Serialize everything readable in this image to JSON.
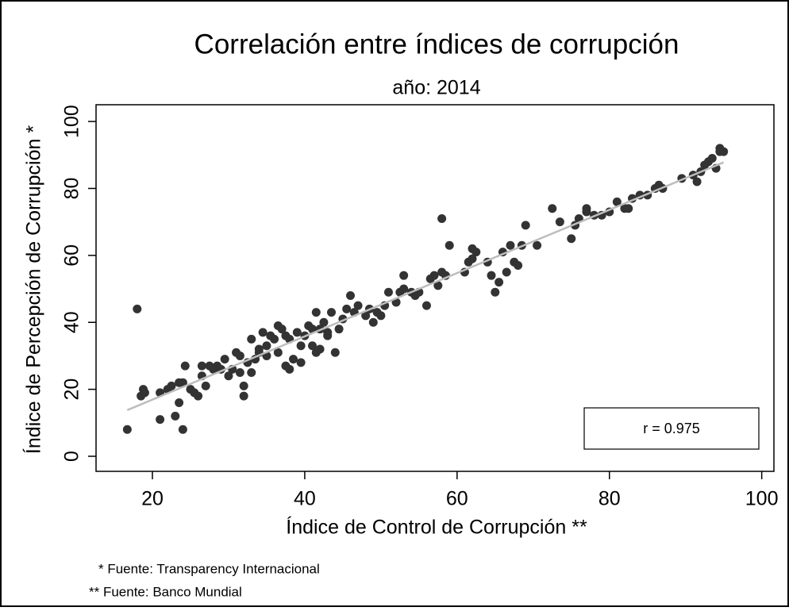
{
  "chart_data": {
    "type": "scatter",
    "title": "Correlación entre índices de corrupción",
    "subtitle": "año: 2014",
    "x_label": "Índice de Control de Corrupción **",
    "y_label": "Índice de Percepción de Corrupción *",
    "annotation": "r = 0.975",
    "footnotes": [
      "* Fuente: Transparency Internacional",
      "** Fuente: Banco Mundial"
    ],
    "color": "#333333",
    "x": [
      16.7,
      18,
      18.5,
      18.8,
      19,
      21,
      21,
      22,
      22.5,
      23,
      23.5,
      23.5,
      24,
      24,
      24.3,
      25,
      25.5,
      26,
      26.5,
      26.5,
      27,
      27.5,
      28,
      28.5,
      29,
      29.5,
      30,
      30.5,
      31,
      31.5,
      31.5,
      32,
      32,
      32.5,
      33,
      33,
      33.5,
      34,
      34,
      34.5,
      35,
      35,
      35.5,
      36,
      36.5,
      36.5,
      37,
      37.5,
      37.5,
      38,
      38,
      38.5,
      39,
      39.5,
      39.5,
      40,
      40.5,
      41,
      41,
      41.5,
      41.5,
      42,
      42,
      42.5,
      43,
      43,
      43.5,
      44,
      44.5,
      45,
      45.5,
      46,
      46.5,
      47,
      48,
      48.5,
      49,
      49.5,
      50,
      50.5,
      51,
      52,
      52.5,
      53,
      53,
      54,
      54.5,
      55,
      56,
      56.5,
      57,
      57.5,
      58,
      58,
      58.5,
      59,
      61,
      61.5,
      62,
      62,
      62.5,
      64,
      64.5,
      65,
      65.5,
      66,
      66.5,
      67,
      67.5,
      68,
      68.5,
      69,
      70.5,
      72.5,
      73.5,
      75,
      75.5,
      76,
      77,
      77,
      78,
      79,
      80,
      81,
      82,
      82.5,
      83,
      84,
      85,
      86,
      86.5,
      87,
      89.5,
      91,
      91.5,
      92,
      92.5,
      93,
      93.5,
      94,
      94.5,
      95,
      94.5
    ],
    "values": [
      8,
      44,
      18,
      20,
      19,
      11,
      19,
      20,
      21,
      12,
      16,
      22,
      8,
      22,
      27,
      20,
      19,
      18,
      24,
      27,
      21,
      27,
      26,
      27,
      26,
      29,
      24,
      26,
      31,
      30,
      25,
      21,
      18,
      28,
      25,
      35,
      29,
      31,
      32,
      37,
      33,
      30,
      36,
      35,
      39,
      31,
      38,
      36,
      27,
      26,
      35,
      29,
      37,
      33,
      28,
      36,
      39,
      38,
      33,
      31,
      43,
      38,
      32,
      40,
      37,
      36,
      43,
      31,
      38,
      41,
      44,
      48,
      43,
      45,
      42,
      44,
      40,
      43,
      42,
      45,
      49,
      46,
      49,
      54,
      50,
      49,
      48,
      49,
      45,
      53,
      54,
      51,
      71,
      55,
      54,
      63,
      55,
      58,
      59,
      62,
      61,
      58,
      54,
      49,
      52,
      61,
      55,
      63,
      58,
      57,
      63,
      69,
      63,
      74,
      70,
      65,
      69,
      71,
      74,
      73,
      72,
      72,
      73,
      76,
      74,
      74,
      77,
      78,
      78,
      80,
      81,
      80,
      83,
      84,
      82,
      85,
      87,
      88,
      89,
      86,
      92,
      91,
      91
    ],
    "fit_line": {
      "x": [
        16.7,
        95
      ],
      "values": [
        13.8,
        87.8
      ],
      "color": "#bdbdbd"
    },
    "xlim": [
      12.6,
      101.6
    ],
    "xticks": [
      20,
      40,
      60,
      80,
      100
    ],
    "ylim": [
      -4.5,
      105
    ],
    "yticks": [
      0,
      20,
      40,
      60,
      80,
      100
    ]
  }
}
